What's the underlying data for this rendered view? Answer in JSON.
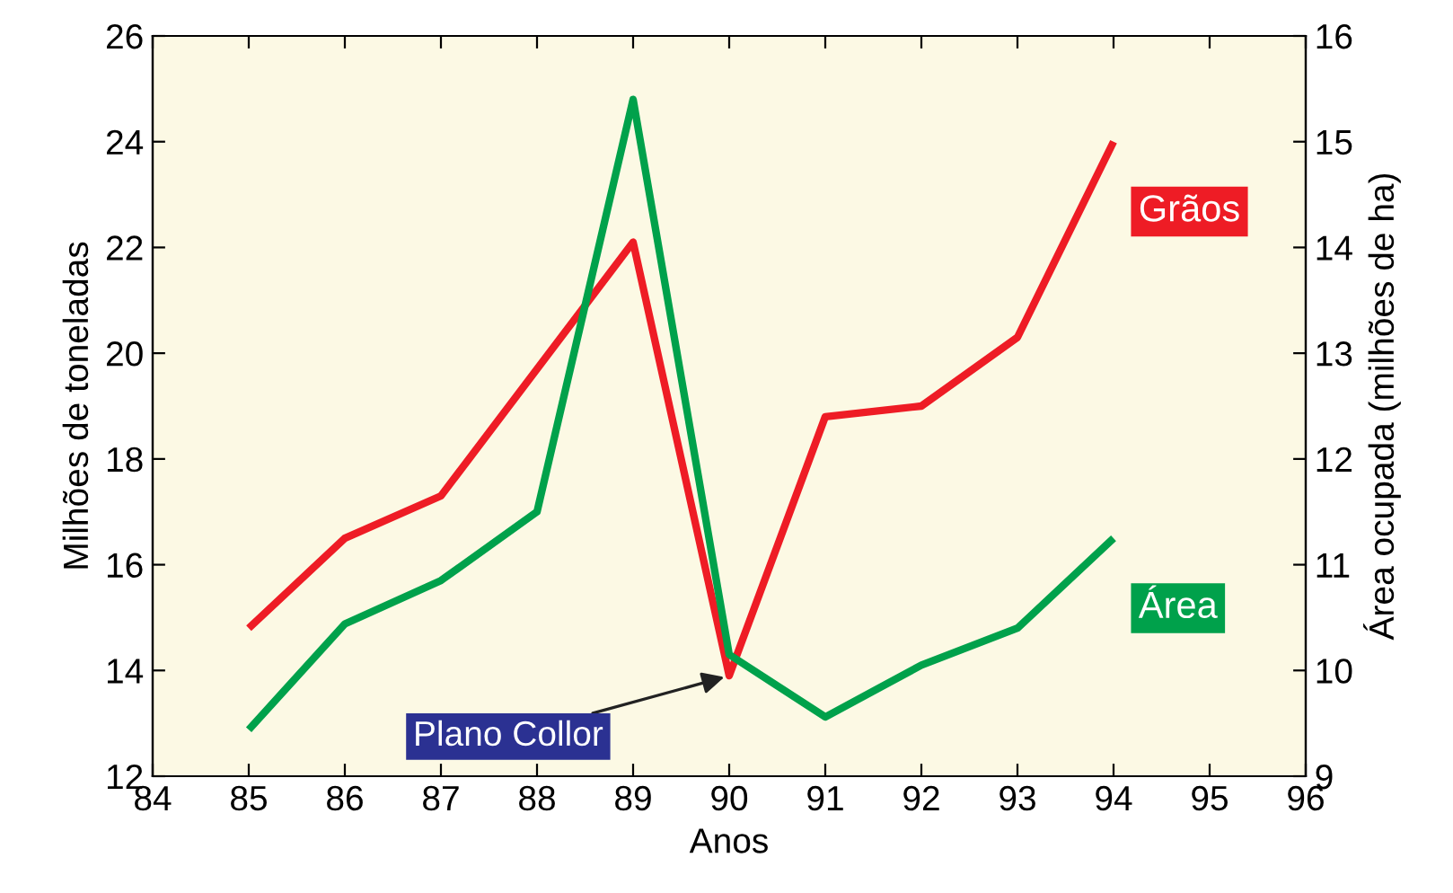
{
  "chart_data": {
    "type": "line",
    "xlabel": "Anos",
    "ylabel": "Milhões de toneladas",
    "y2label": "Área ocupada (milhões de ha)",
    "x": [
      85,
      86,
      87,
      88,
      89,
      90,
      91,
      92,
      93,
      94
    ],
    "series": [
      {
        "name": "Grãos",
        "color": "#ee1c25",
        "values": [
          14.8,
          16.5,
          17.3,
          19.7,
          22.1,
          13.9,
          18.8,
          19.0,
          20.3,
          24.0
        ]
      },
      {
        "name": "Área",
        "color": "#00a14b",
        "axis": "y2",
        "values": [
          9.44,
          10.44,
          10.85,
          11.5,
          15.4,
          10.15,
          9.56,
          10.05,
          10.4,
          11.25
        ]
      }
    ],
    "xlim": [
      84,
      96
    ],
    "xticks": [
      84,
      85,
      86,
      87,
      88,
      89,
      90,
      91,
      92,
      93,
      94,
      95,
      96
    ],
    "ylim": [
      12,
      26
    ],
    "yticks": [
      12,
      14,
      16,
      18,
      20,
      22,
      24,
      26
    ],
    "y2lim": [
      9,
      16
    ],
    "y2ticks": [
      9,
      10,
      11,
      12,
      13,
      14,
      15,
      16
    ],
    "annotations": [
      {
        "text": "Plano Collor",
        "x": 90,
        "y": 13.9
      }
    ],
    "grid": false,
    "legend": false,
    "marker": "none",
    "line_style": "solid"
  }
}
